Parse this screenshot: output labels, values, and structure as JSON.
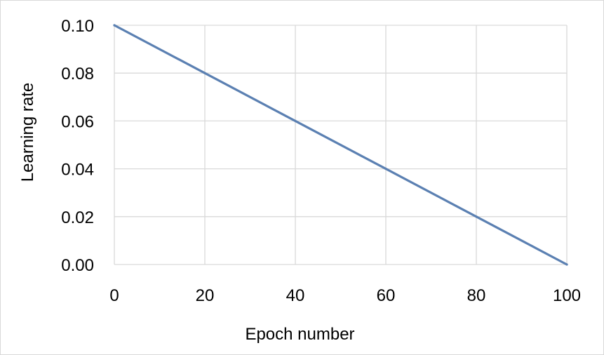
{
  "chart_data": {
    "type": "line",
    "title": "",
    "xlabel": "Epoch number",
    "ylabel": "Learning rate",
    "xlim": [
      0,
      100
    ],
    "ylim": [
      0,
      0.1
    ],
    "xticks": [
      "0",
      "20",
      "40",
      "60",
      "80",
      "100"
    ],
    "yticks": [
      "0.00",
      "0.02",
      "0.04",
      "0.06",
      "0.08",
      "0.10"
    ],
    "xtick_values": [
      0,
      20,
      40,
      60,
      80,
      100
    ],
    "ytick_values": [
      0,
      0.02,
      0.04,
      0.06,
      0.08,
      0.1
    ],
    "grid": true,
    "legend": "none",
    "series": [
      {
        "color": "#5b80b2",
        "x": [
          0,
          20,
          40,
          60,
          80,
          100
        ],
        "y": [
          0.1,
          0.08,
          0.06,
          0.04,
          0.02,
          0.0
        ]
      }
    ]
  },
  "colors": {
    "grid": "#d9d9d9",
    "line": "#5b80b2"
  }
}
